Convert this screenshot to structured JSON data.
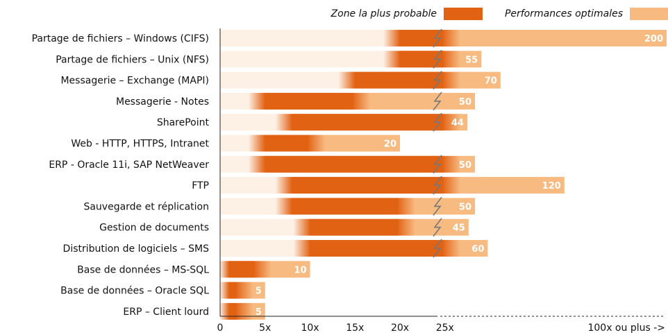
{
  "legend": {
    "probable_label": "Zone la plus probable",
    "optimal_label": "Performances optimales"
  },
  "colors": {
    "probable": "#e26214",
    "optimal": "#f7bb82",
    "fade_start": "#fdf1e6",
    "axis": "#222222",
    "break_mark": "#777777"
  },
  "chart_data": {
    "type": "bar",
    "orientation": "horizontal",
    "x_ticks": [
      "0",
      "5x",
      "10x",
      "15x",
      "20x",
      "25x"
    ],
    "x_tick_values": [
      0,
      5,
      10,
      15,
      20,
      25
    ],
    "x_overflow_label": "100x ou plus  ->",
    "axis_break_at": 25,
    "categories": [
      "Partage de fichiers – Windows (CIFS)",
      "Partage de fichiers – Unix (NFS)",
      "Messagerie – Exchange (MAPI)",
      "Messagerie - Notes",
      "SharePoint",
      "Web - HTTP, HTTPS, Intranet",
      "ERP - Oracle 11i, SAP NetWeaver",
      "FTP",
      "Sauvegarde et réplication",
      "Gestion de documents",
      "Distribution de logiciels – SMS",
      "Base de données – MS-SQL",
      "Base de données – Oracle SQL",
      "ERP – Client lourd"
    ],
    "series": [
      {
        "name": "Zone la plus probable",
        "ranges": [
          [
            20,
            25
          ],
          [
            20,
            25
          ],
          [
            15,
            25
          ],
          [
            5,
            15
          ],
          [
            8,
            25
          ],
          [
            5,
            10
          ],
          [
            5,
            25
          ],
          [
            8,
            25
          ],
          [
            8,
            20
          ],
          [
            10,
            20
          ],
          [
            10,
            25
          ],
          [
            1,
            4
          ],
          [
            1,
            2
          ],
          [
            1,
            2
          ]
        ]
      },
      {
        "name": "Performances optimales",
        "values": [
          200,
          55,
          70,
          50,
          44,
          20,
          50,
          120,
          50,
          45,
          60,
          10,
          5,
          5
        ]
      }
    ],
    "value_labels": [
      "200",
      "55",
      "70",
      "50",
      "44",
      "20",
      "50",
      "120",
      "50",
      "45",
      "60",
      "10",
      "5",
      "5"
    ]
  }
}
